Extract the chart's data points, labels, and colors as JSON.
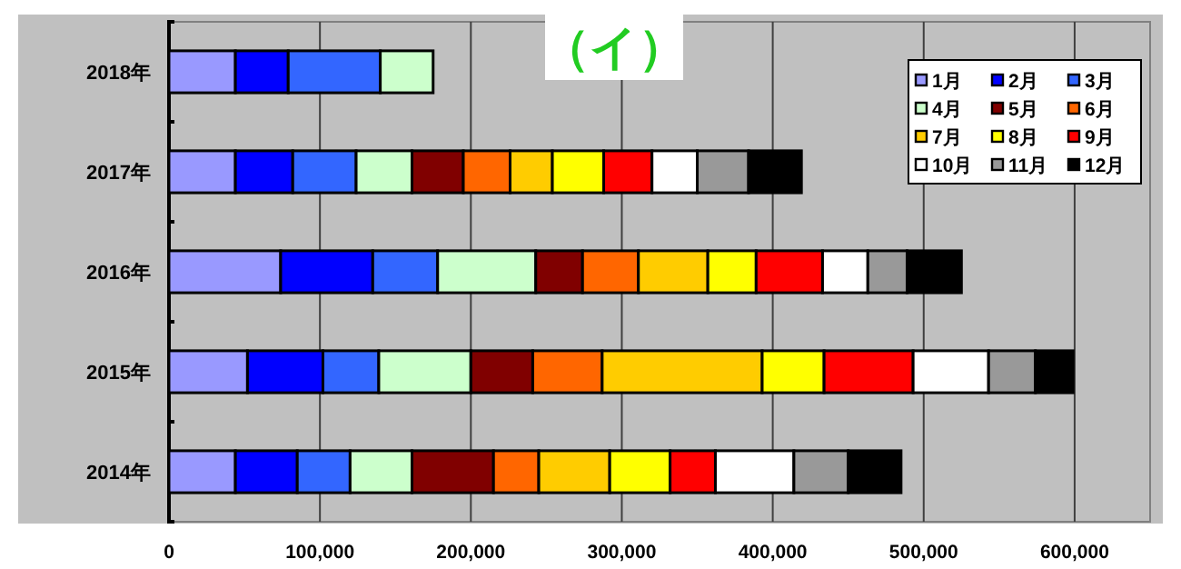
{
  "chart_data": {
    "type": "bar",
    "orientation": "horizontal",
    "stacked": true,
    "title": "（イ）",
    "categories": [
      "2018年",
      "2017年",
      "2016年",
      "2015年",
      "2014年"
    ],
    "series": [
      {
        "name": "1月",
        "color": "#9999ff",
        "values": [
          44000,
          44000,
          74000,
          52000,
          44000
        ]
      },
      {
        "name": "2月",
        "color": "#0000ff",
        "values": [
          35000,
          38000,
          61000,
          50000,
          41000
        ]
      },
      {
        "name": "3月",
        "color": "#3366ff",
        "values": [
          61000,
          42000,
          43000,
          37000,
          35000
        ]
      },
      {
        "name": "4月",
        "color": "#ccffcc",
        "values": [
          35000,
          37000,
          65000,
          61000,
          41000
        ]
      },
      {
        "name": "5月",
        "color": "#800000",
        "values": [
          null,
          34000,
          31000,
          41000,
          54000
        ]
      },
      {
        "name": "6月",
        "color": "#ff6600",
        "values": [
          null,
          31000,
          37000,
          46000,
          30000
        ]
      },
      {
        "name": "7月",
        "color": "#ffcc00",
        "values": [
          null,
          28000,
          46000,
          106000,
          47000
        ]
      },
      {
        "name": "8月",
        "color": "#ffff00",
        "values": [
          null,
          34000,
          32000,
          41000,
          40000
        ]
      },
      {
        "name": "9月",
        "color": "#ff0000",
        "values": [
          null,
          32000,
          44000,
          59000,
          30000
        ]
      },
      {
        "name": "10月",
        "color": "#ffffff",
        "values": [
          null,
          30000,
          30000,
          50000,
          52000
        ]
      },
      {
        "name": "11月",
        "color": "#999999",
        "values": [
          null,
          34000,
          26000,
          31000,
          36000
        ]
      },
      {
        "name": "12月",
        "color": "#000000",
        "values": [
          null,
          35000,
          36000,
          25000,
          35000
        ]
      }
    ],
    "xlim": [
      0,
      650000
    ],
    "xticks": [
      0,
      {
        "value": 100000,
        "label": "100,000"
      },
      {
        "value": 200000,
        "label": "200,000"
      },
      {
        "value": 300000,
        "label": "300,000"
      },
      {
        "value": 400000,
        "label": "400,000"
      },
      {
        "value": 500000,
        "label": "500,000"
      },
      {
        "value": 600000,
        "label": "600,000"
      }
    ],
    "grid": "x",
    "legend": "top right"
  }
}
